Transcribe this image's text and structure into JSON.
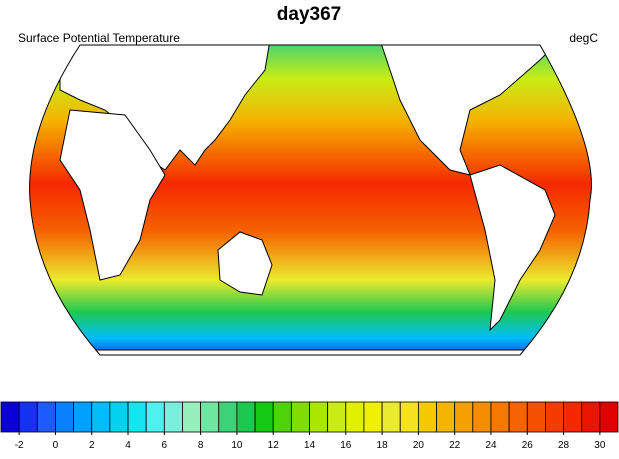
{
  "title": "day367",
  "left_label": "Surface Potential Temperature",
  "right_label": "degC",
  "colorbar": {
    "ticks": [
      -2,
      0,
      2,
      4,
      6,
      8,
      10,
      12,
      14,
      16,
      18,
      20,
      22,
      24,
      26,
      28,
      30
    ],
    "colors": [
      "#0a00d8",
      "#1432f0",
      "#1e5aff",
      "#0a82ff",
      "#00a0ff",
      "#00bef8",
      "#00d2f0",
      "#14e6f0",
      "#50f0f0",
      "#78f0dc",
      "#96f0be",
      "#6ee6a0",
      "#3cd278",
      "#1ec850",
      "#14c814",
      "#50d20a",
      "#82dc00",
      "#aae600",
      "#c8ec14",
      "#e1f000",
      "#f0f000",
      "#ebeb2d",
      "#f5e11e",
      "#f5c800",
      "#f5b400",
      "#f5a000",
      "#f58c00",
      "#f57800",
      "#f56400",
      "#f55000",
      "#f53c00",
      "#f52800",
      "#eb1400",
      "#e10000"
    ]
  }
}
